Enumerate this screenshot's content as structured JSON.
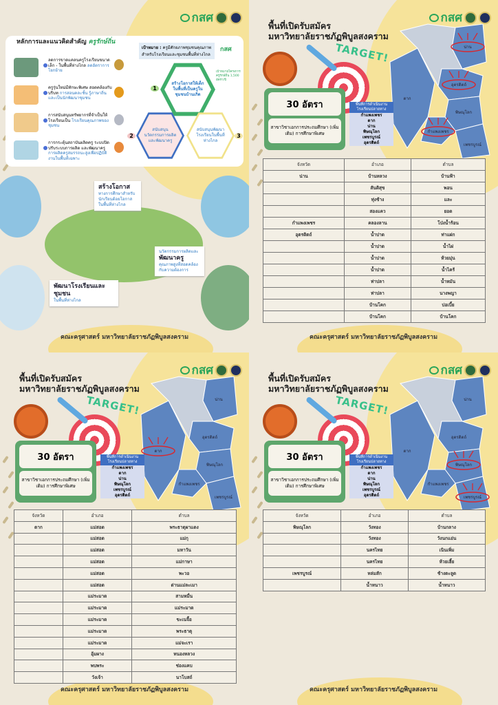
{
  "brand": {
    "logo_text": "กสศ",
    "footer": "คณะครุศาสตร์ มหาวิทยาลัยราชภัฏพิบูลสงคราม"
  },
  "colors": {
    "background": "#eee8db",
    "yellow": "#f6e39a",
    "green": "#5ea66c",
    "blue_province": "#5d85c0",
    "gray_province": "#c8d0dc",
    "highlight_red": "#d8282f"
  },
  "overview": {
    "title": "หลักการและแนวคิดสำคัญ",
    "title_script": "ครูรักษ์ถิ่น",
    "items": [
      {
        "text": "ลดการขาดแคลนครูโรงเรียนขนาดเล็ก - ในพื้นที่ห่างไกล",
        "highlight": "ลดอัตราการโยกย้าย"
      },
      {
        "text": "ครูรุ่นใหม่มีทักษะพิเศษ สอดคล้องกับบริบท",
        "highlight": "การสอนคละชั้น รู้ภาษาถิ่น และเป็นนักพัฒนาชุมชน"
      },
      {
        "text": "การสนับสนุนทรัพยากรที่จำเป็นให้โรงเรียนเป็น",
        "highlight": "โรงเรียนคุณภาพของชุมชน"
      },
      {
        "text": "การกระตุ้นสถาบันผลิตครู ระบบปิดปรับระบบการผลิต และพัฒนาครู",
        "highlight": "การผลิตครูสมรรถนะสูงเพื่อปฏิบัติงานในพื้นที่เฉพาะ"
      }
    ],
    "goal_label": "เป้าหมาย :",
    "goal_text": "ครูมีศักยภาพชุมชนคุณภาพ สำหรับโรงเรียนและชุมชนพื้นที่ห่างไกล",
    "hexagons": [
      {
        "num": "1",
        "text": "สร้างโอกาสให้เด็กในพื้นที่เป็นครูในชุมชนบ้านเกิด"
      },
      {
        "num": "2",
        "text": "สนับสนุนนวัตกรรมการผลิตและพัฒนาครู"
      },
      {
        "num": "3",
        "text": "สนับสนุนพัฒนาโรงเรียนในพื้นที่ห่างไกล"
      }
    ],
    "side_note": "เป้าหมายโครงการ ครูรักษ์ถิ่น 1,500 อัตรา/ปี",
    "callouts": [
      {
        "title": "สร้างโอกาส",
        "text": "ทางการศึกษาสำหรับนักเรียนด้อยโอกาสในพื้นที่ห่างไกล"
      },
      {
        "pre": "นวัตกรรมการผลิตและ",
        "title": "พัฒนาครู",
        "text": "คุณภาพสูงที่สอดคล้องกับความต้องการ"
      },
      {
        "title": "พัฒนาโรงเรียนและชุมชน",
        "text": "ในพื้นที่ห่างไกล"
      }
    ]
  },
  "panels": [
    {
      "title_line1": "พื้นที่เปิดรับสมัคร",
      "title_line2": "มหาวิทยาลัยราชภัฏพิบูลสงคราม",
      "target_word": "TARGET!",
      "quota": "30 อัตรา",
      "major": "สาขาวิชาเอกการประถมศึกษา (เพิ่มเติม) การศึกษาพิเศษ",
      "areas_header": "พื้นที่การดำเนินงาน โรงเรียนปลายทาง",
      "areas": [
        "กำแพงเพชร",
        "ตาก",
        "น่าน",
        "พิษณุโลก",
        "เพชรบูรณ์",
        "อุตรดิตถ์"
      ],
      "highlighted": [
        "น่าน",
        "อุตรดิตถ์",
        "กำแพงเพชร"
      ],
      "map_labels": [
        "น่าน",
        "อุตรดิตถ์",
        "พิษณุโลก",
        "ตาก",
        "กำแพงเพชร",
        "เพชรบูรณ์"
      ],
      "headers": [
        "จังหวัด",
        "อำเภอ",
        "ตำบล"
      ],
      "rows": [
        [
          "น่าน",
          "บ้านหลวง",
          "บ้านฟ้า"
        ],
        [
          "",
          "สันติสุข",
          "พอน"
        ],
        [
          "",
          "ทุ่งช้าง",
          "และ"
        ],
        [
          "",
          "สองแคว",
          "ยอด"
        ],
        [
          "กำแพงเพชร",
          "คลองลาน",
          "โป่งน้ำร้อน"
        ],
        [
          "อุตรดิตถ์",
          "น้ำปาด",
          "ท่าแฝก"
        ],
        [
          "",
          "น้ำปาด",
          "น้ำไผ่"
        ],
        [
          "",
          "น้ำปาด",
          "ห้วยมุ่น"
        ],
        [
          "",
          "น้ำปาด",
          "น้ำไคร้"
        ],
        [
          "",
          "ท่าปลา",
          "น้ำหมัน"
        ],
        [
          "",
          "ท่าปลา",
          "นางพญา"
        ],
        [
          "",
          "บ้านโคก",
          "บ่อเบี้ย"
        ],
        [
          "",
          "บ้านโคก",
          "บ้านโคก"
        ]
      ]
    },
    {
      "title_line1": "พื้นที่เปิดรับสมัคร",
      "title_line2": "มหาวิทยาลัยราชภัฏพิบูลสงคราม",
      "target_word": "TARGET!",
      "quota": "30 อัตรา",
      "major": "สาขาวิชาเอกการประถมศึกษา (เพิ่มเติม) การศึกษาพิเศษ",
      "areas_header": "พื้นที่การดำเนินงาน โรงเรียนปลายทาง",
      "areas": [
        "กำแพงเพชร",
        "ตาก",
        "น่าน",
        "พิษณุโลก",
        "เพชรบูรณ์",
        "อุตรดิตถ์"
      ],
      "highlighted": [
        "ตาก"
      ],
      "map_labels": [
        "น่าน",
        "อุตรดิตถ์",
        "พิษณุโลก",
        "ตาก",
        "กำแพงเพชร",
        "เพชรบูรณ์"
      ],
      "headers": [
        "จังหวัด",
        "อำเภอ",
        "ตำบล"
      ],
      "rows": [
        [
          "ตาก",
          "แม่สอด",
          "พระธาตุผาแดง"
        ],
        [
          "",
          "แม่สอด",
          "แม่กุ"
        ],
        [
          "",
          "แม่สอด",
          "มหาวัน"
        ],
        [
          "",
          "แม่สอด",
          "แม่กาษา"
        ],
        [
          "",
          "แม่สอด",
          "พะวอ"
        ],
        [
          "",
          "แม่สอด",
          "ด่านแม่ละเมา"
        ],
        [
          "",
          "แม่ระมาด",
          "สามหมื่น"
        ],
        [
          "",
          "แม่ระมาด",
          "แม่ระมาด"
        ],
        [
          "",
          "แม่ระมาด",
          "ขะเนจื้อ"
        ],
        [
          "",
          "แม่ระมาด",
          "พระธาตุ"
        ],
        [
          "",
          "แม่ระมาด",
          "แม่จะเรา"
        ],
        [
          "",
          "อุ้มผาง",
          "หนองหลวง"
        ],
        [
          "",
          "พบพระ",
          "ช่องแคบ"
        ],
        [
          "",
          "วังเจ้า",
          "นาโบสถ์"
        ]
      ]
    },
    {
      "title_line1": "พื้นที่เปิดรับสมัคร",
      "title_line2": "มหาวิทยาลัยราชภัฏพิบูลสงคราม",
      "target_word": "TARGET!",
      "quota": "30 อัตรา",
      "major": "สาขาวิชาเอกการประถมศึกษา (เพิ่มเติม) การศึกษาพิเศษ",
      "areas_header": "พื้นที่การดำเนินงาน โรงเรียนปลายทาง",
      "areas": [
        "กำแพงเพชร",
        "ตาก",
        "น่าน",
        "พิษณุโลก",
        "เพชรบูรณ์",
        "อุตรดิตถ์"
      ],
      "highlighted": [
        "พิษณุโลก",
        "เพชรบูรณ์"
      ],
      "map_labels": [
        "น่าน",
        "อุตรดิตถ์",
        "พิษณุโลก",
        "ตาก",
        "กำแพงเพชร",
        "เพชรบูรณ์"
      ],
      "headers": [
        "จังหวัด",
        "อำเภอ",
        "ตำบล"
      ],
      "rows": [
        [
          "พิษณุโลก",
          "วังทอง",
          "บ้านกลาง"
        ],
        [
          "",
          "วังทอง",
          "วังนกแอ่น"
        ],
        [
          "",
          "นครไทย",
          "เนินเพิ่ม"
        ],
        [
          "",
          "นครไทย",
          "ห้วยเฮี้ย"
        ],
        [
          "เพชรบูรณ์",
          "หล่มสัก",
          "ช้างตะลูด"
        ],
        [
          "",
          "น้ำหนาว",
          "น้ำหนาว"
        ]
      ]
    }
  ]
}
